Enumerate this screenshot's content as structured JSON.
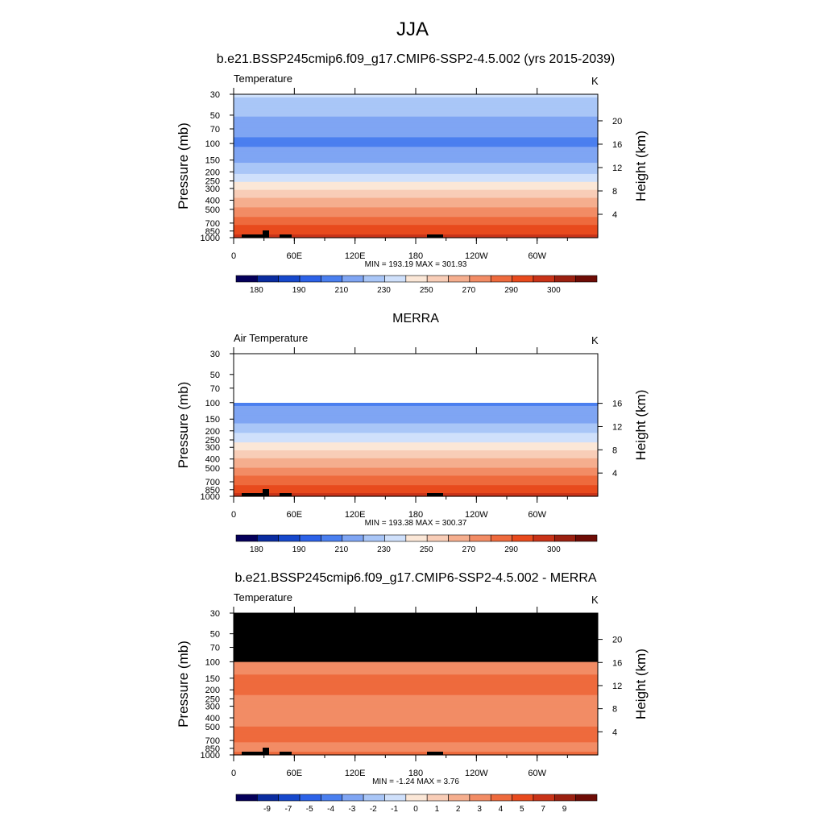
{
  "figure": {
    "title": "JJA"
  },
  "colors": {
    "temperature_palette": [
      "#05005a",
      "#0a2ca0",
      "#1648cc",
      "#2c62e8",
      "#4a7fef",
      "#7fa5f3",
      "#a9c6f7",
      "#cfe0fb",
      "#fbe7d7",
      "#f8cdb7",
      "#f5ae8e",
      "#f28c65",
      "#ee6a3d",
      "#e84a1d",
      "#c93318",
      "#9b2010",
      "#6e0c06"
    ],
    "difference_palette": [
      "#05005a",
      "#0a2ca0",
      "#1648cc",
      "#2c62e8",
      "#4a7fef",
      "#7fa5f3",
      "#a9c6f7",
      "#cfe0fb",
      "#fbe7d7",
      "#f8cdb7",
      "#f5ae8e",
      "#f28c65",
      "#ee6a3d",
      "#e84a1d",
      "#c93318",
      "#9b2010",
      "#6e0c06"
    ],
    "missing": "#000000"
  },
  "chart_data": [
    {
      "type": "heatmap",
      "title": "b.e21.BSSP245cmip6.f09_g17.CMIP6-SSP2-4.5.002 (yrs 2015-2039)",
      "left_label": "Temperature",
      "units": "K",
      "xlabel": "",
      "ylabel": "Pressure (mb)",
      "y2label": "Height (km)",
      "x_ticks": [
        "0",
        "60E",
        "120E",
        "180",
        "120W",
        "60W"
      ],
      "x_tick_values": [
        0,
        60,
        120,
        180,
        240,
        300
      ],
      "xlim": [
        0,
        360
      ],
      "y_ticks": [
        "30",
        "50",
        "70",
        "100",
        "150",
        "200",
        "250",
        "300",
        "400",
        "500",
        "700",
        "850",
        "1000"
      ],
      "y_tick_values": [
        30,
        50,
        70,
        100,
        150,
        200,
        250,
        300,
        400,
        500,
        700,
        850,
        1000
      ],
      "ylim": [
        1000,
        30
      ],
      "y_scale": "log",
      "y2_ticks": [
        "20",
        "16",
        "12",
        "8",
        "4"
      ],
      "y2_tick_values": [
        20,
        16,
        12,
        8,
        4
      ],
      "stats": "MIN = 193.19   MAX = 301.93",
      "min": 193.19,
      "max": 301.93,
      "colorbar_labels": [
        "180",
        "190",
        "210",
        "230",
        "250",
        "270",
        "290",
        "300"
      ],
      "colorbar_levels": [
        175,
        180,
        185,
        190,
        200,
        210,
        220,
        230,
        240,
        250,
        260,
        270,
        280,
        290,
        295,
        300
      ],
      "profile": [
        {
          "p": 30,
          "t": 222
        },
        {
          "p": 50,
          "t": 211
        },
        {
          "p": 70,
          "t": 203
        },
        {
          "p": 100,
          "t": 198
        },
        {
          "p": 150,
          "t": 208
        },
        {
          "p": 200,
          "t": 218
        },
        {
          "p": 250,
          "t": 228
        },
        {
          "p": 300,
          "t": 238
        },
        {
          "p": 400,
          "t": 252
        },
        {
          "p": 500,
          "t": 262
        },
        {
          "p": 700,
          "t": 278
        },
        {
          "p": 850,
          "t": 286
        },
        {
          "p": 1000,
          "t": 294
        }
      ],
      "top_missing_below_p": null
    },
    {
      "type": "heatmap",
      "title": "MERRA",
      "left_label": "Air Temperature",
      "units": "K",
      "xlabel": "",
      "ylabel": "Pressure (mb)",
      "y2label": "Height (km)",
      "x_ticks": [
        "0",
        "60E",
        "120E",
        "180",
        "120W",
        "60W"
      ],
      "x_tick_values": [
        0,
        60,
        120,
        180,
        240,
        300
      ],
      "xlim": [
        0,
        360
      ],
      "y_ticks": [
        "30",
        "50",
        "70",
        "100",
        "150",
        "200",
        "250",
        "300",
        "400",
        "500",
        "700",
        "850",
        "1000"
      ],
      "y_tick_values": [
        30,
        50,
        70,
        100,
        150,
        200,
        250,
        300,
        400,
        500,
        700,
        850,
        1000
      ],
      "ylim": [
        1000,
        30
      ],
      "y_scale": "log",
      "y2_ticks": [
        "16",
        "12",
        "8",
        "4"
      ],
      "y2_tick_values": [
        16,
        12,
        8,
        4
      ],
      "stats": "MIN = 193.38   MAX = 300.37",
      "min": 193.38,
      "max": 300.37,
      "colorbar_labels": [
        "180",
        "190",
        "210",
        "230",
        "250",
        "270",
        "290",
        "300"
      ],
      "colorbar_levels": [
        175,
        180,
        185,
        190,
        200,
        210,
        220,
        230,
        240,
        250,
        260,
        270,
        280,
        290,
        295,
        300
      ],
      "profile": [
        {
          "p": 100,
          "t": 198
        },
        {
          "p": 150,
          "t": 207
        },
        {
          "p": 200,
          "t": 217
        },
        {
          "p": 250,
          "t": 227
        },
        {
          "p": 300,
          "t": 237
        },
        {
          "p": 400,
          "t": 251
        },
        {
          "p": 500,
          "t": 261
        },
        {
          "p": 700,
          "t": 277
        },
        {
          "p": 850,
          "t": 285
        },
        {
          "p": 1000,
          "t": 293
        }
      ],
      "top_missing_below_p": 100
    },
    {
      "type": "heatmap",
      "title": "b.e21.BSSP245cmip6.f09_g17.CMIP6-SSP2-4.5.002 - MERRA",
      "left_label": "Temperature",
      "units": "K",
      "xlabel": "",
      "ylabel": "Pressure (mb)",
      "y2label": "Height (km)",
      "x_ticks": [
        "0",
        "60E",
        "120E",
        "180",
        "120W",
        "60W"
      ],
      "x_tick_values": [
        0,
        60,
        120,
        180,
        240,
        300
      ],
      "xlim": [
        0,
        360
      ],
      "y_ticks": [
        "30",
        "50",
        "70",
        "100",
        "150",
        "200",
        "250",
        "300",
        "400",
        "500",
        "700",
        "850",
        "1000"
      ],
      "y_tick_values": [
        30,
        50,
        70,
        100,
        150,
        200,
        250,
        300,
        400,
        500,
        700,
        850,
        1000
      ],
      "ylim": [
        1000,
        30
      ],
      "y_scale": "log",
      "y2_ticks": [
        "20",
        "16",
        "12",
        "8",
        "4"
      ],
      "y2_tick_values": [
        20,
        16,
        12,
        8,
        4
      ],
      "stats": "MIN =  -1.24   MAX =   3.76",
      "min": -1.24,
      "max": 3.76,
      "colorbar_labels": [
        "-9",
        "-7",
        "-5",
        "-4",
        "-3",
        "-2",
        "-1",
        "0",
        "1",
        "2",
        "3",
        "4",
        "5",
        "7",
        "9"
      ],
      "colorbar_levels": [
        -10,
        -9,
        -8,
        -7,
        -5,
        -4,
        -3,
        -2,
        -1,
        0,
        1,
        2,
        3,
        4,
        5,
        7,
        9
      ],
      "profile": [
        {
          "p": 100,
          "t": 1.2
        },
        {
          "p": 150,
          "t": 2.2
        },
        {
          "p": 200,
          "t": 2.1
        },
        {
          "p": 300,
          "t": 1.8
        },
        {
          "p": 500,
          "t": 2.0
        },
        {
          "p": 700,
          "t": 2.1
        },
        {
          "p": 850,
          "t": 1.5
        },
        {
          "p": 1000,
          "t": 2.6
        }
      ],
      "top_missing_below_p": 100
    }
  ]
}
